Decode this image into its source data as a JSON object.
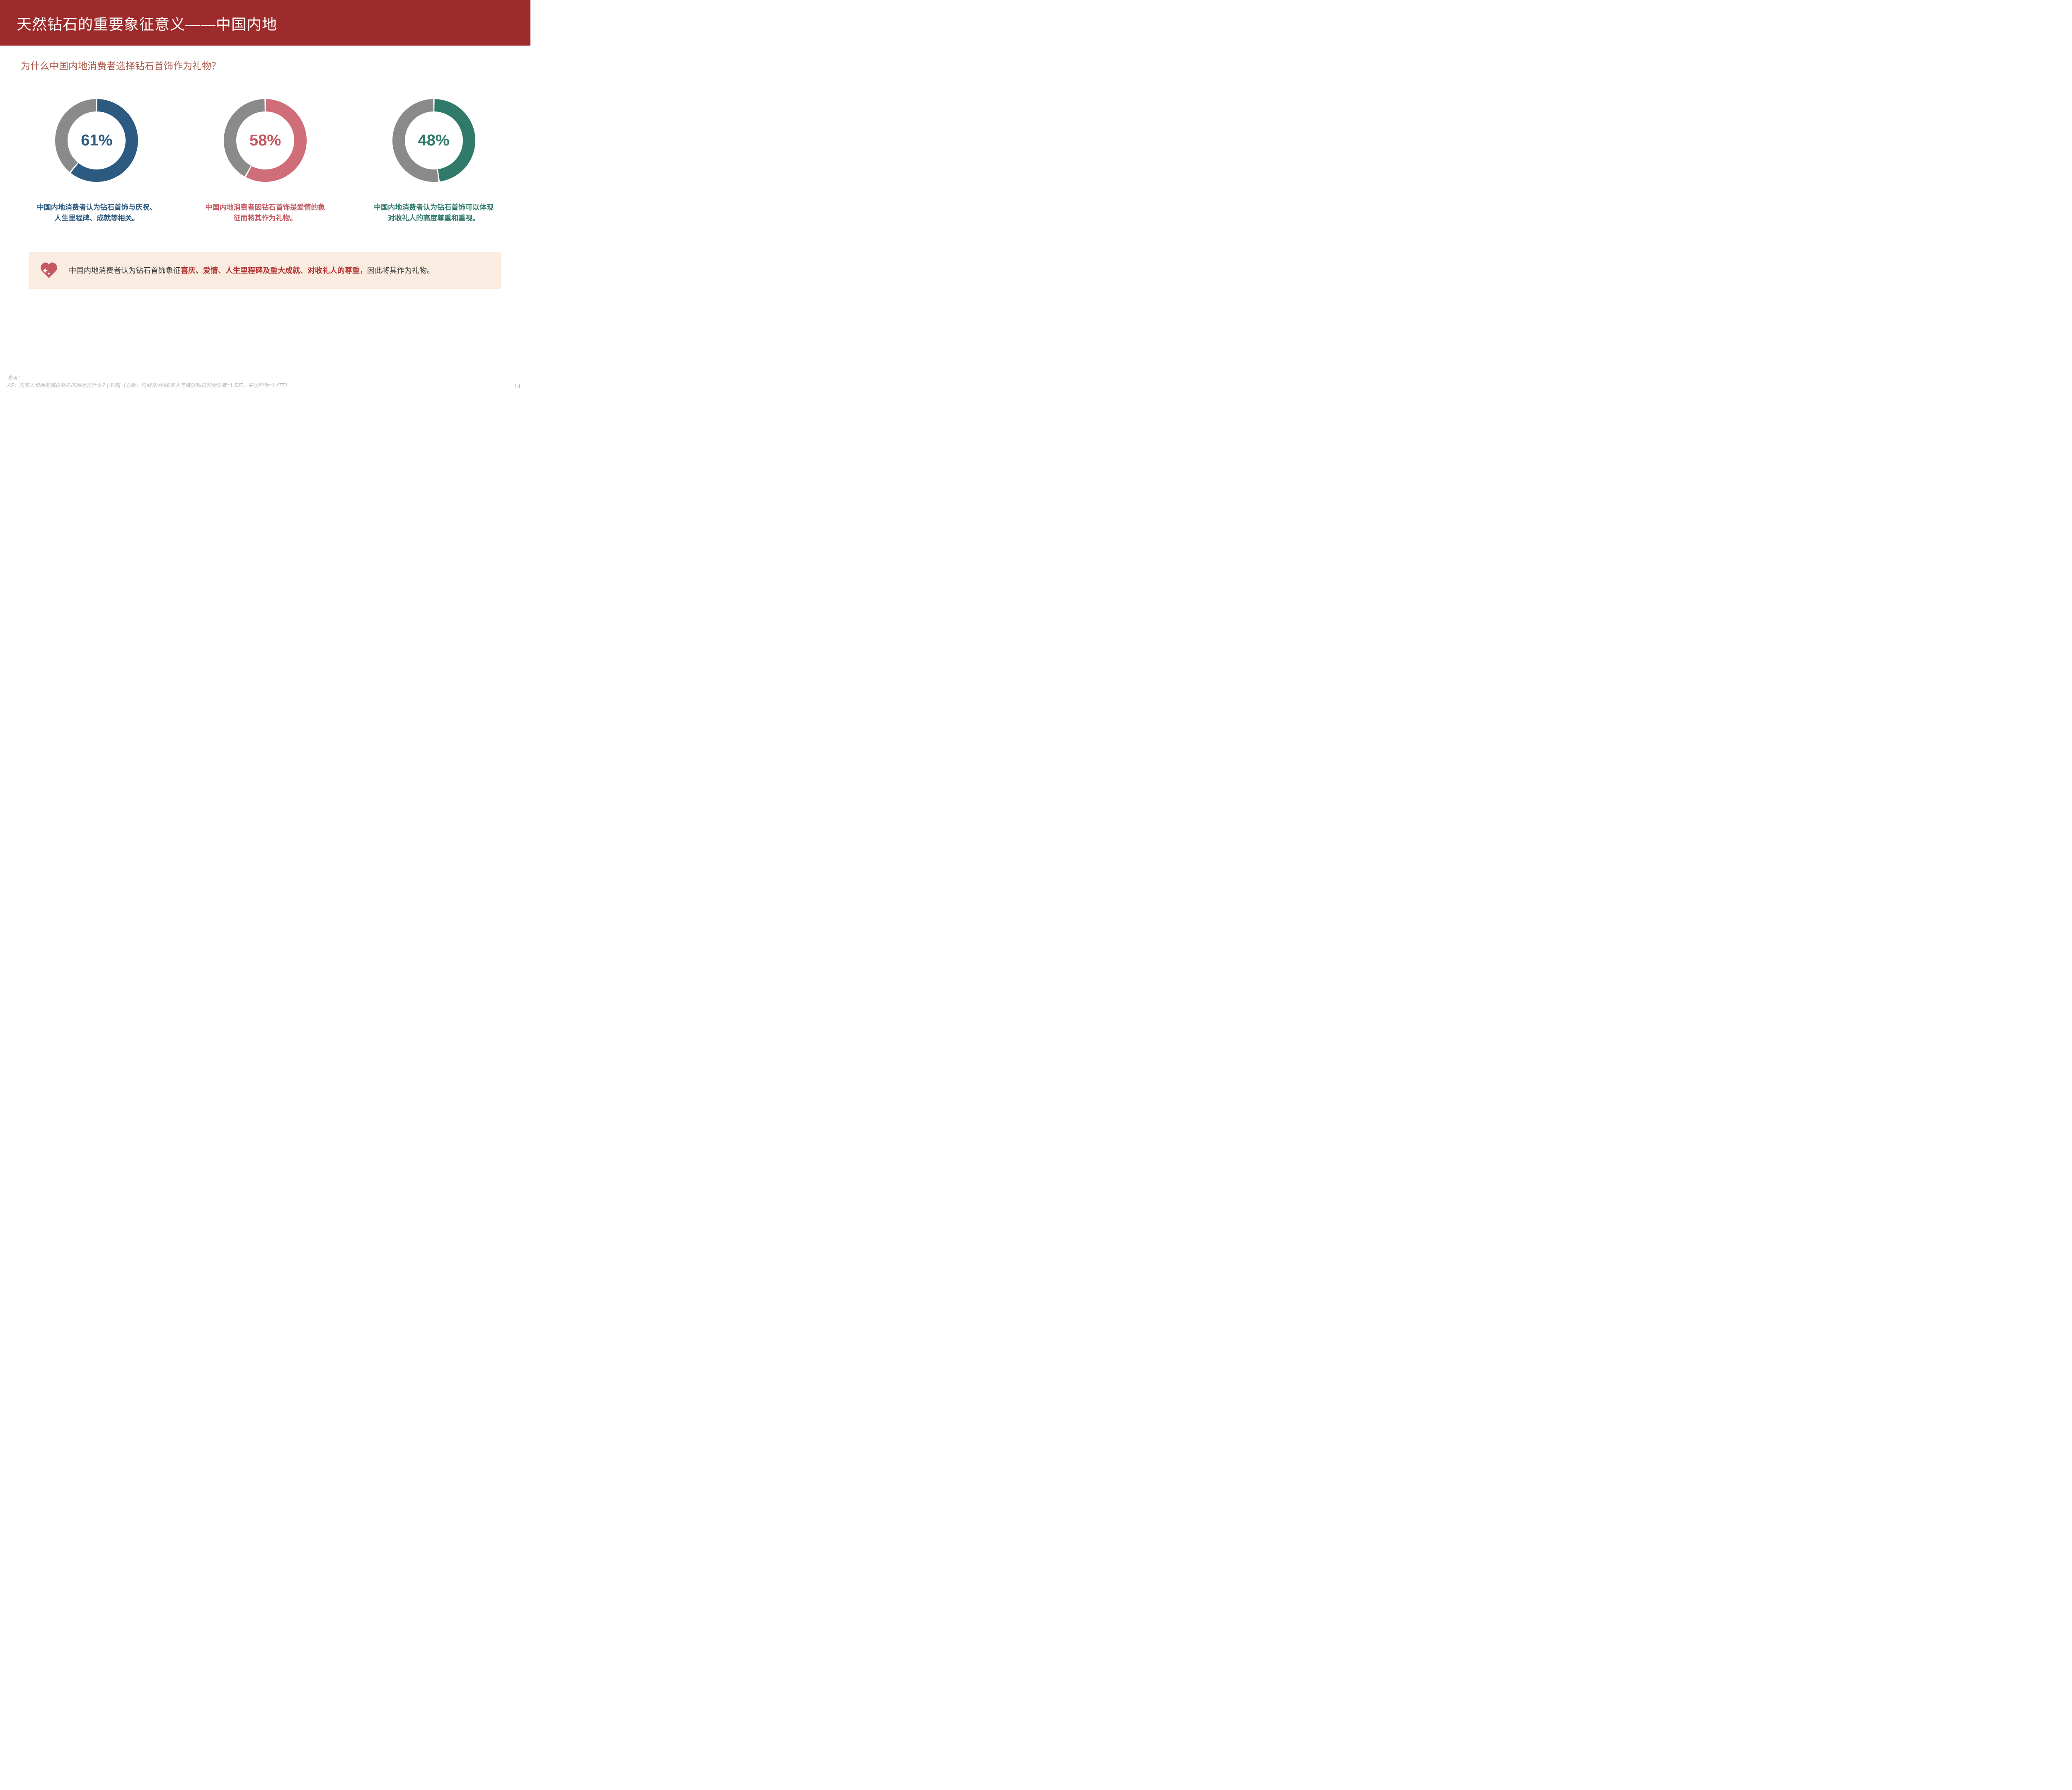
{
  "header": {
    "title": "天然钻石的重要象征意义——中国内地"
  },
  "subtitle": "为什么中国内地消费者选择钻石首饰作为礼物？",
  "donuts": [
    {
      "percent": 61,
      "percent_label": "61%",
      "ring_color": "#2d5a80",
      "remainder_color": "#8a8a8a",
      "text_color": "#2d5a80",
      "caption": "中国内地消费者认为钻石首饰与庆祝、人生里程碑、成就等相关。"
    },
    {
      "percent": 58,
      "percent_label": "58%",
      "ring_color": "#cf6e78",
      "remainder_color": "#8a8a8a",
      "text_color": "#c45860",
      "caption": "中国内地消费者因钻石首饰是爱情的象征而将其作为礼物。"
    },
    {
      "percent": 48,
      "percent_label": "48%",
      "ring_color": "#2f7a6b",
      "remainder_color": "#8a8a8a",
      "text_color": "#2f7a6b",
      "caption": "中国内地消费者认为钻石首饰可以体现对收礼人的高度尊重和重视。"
    }
  ],
  "donut_style": {
    "outer_radius": 100,
    "thickness": 30,
    "start_angle_deg": 0,
    "gap_deg": 2
  },
  "summary": {
    "icon_color": "#c45860",
    "prefix": "中国内地消费者认为钻石首饰象征",
    "highlight": "喜庆、爱情、人生里程碑及重大成就、对收礼人的尊重",
    "suffix": "，因此将其作为礼物。"
  },
  "footnote": {
    "label": "参考：",
    "text": "A5：向家人和朋友赠送钻石的原因是什么？[多选]（总数：向朋友/伴侣/家人等赠送钻石的受访者=1,537，中国内地=1,477）"
  },
  "page_number": "14"
}
